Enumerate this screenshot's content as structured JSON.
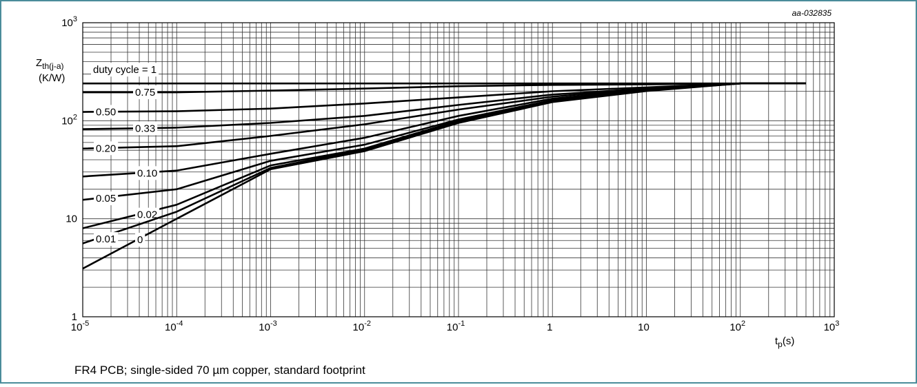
{
  "chart_data": {
    "type": "line",
    "annotation": "aa-032835",
    "caption": "FR4 PCB; single-sided 70 µm copper, standard footprint",
    "y_label": {
      "symbol": "Z",
      "subscript": "th(j-a)",
      "unit": "(K/W)"
    },
    "x_label": {
      "symbol": "t",
      "subscript": "p",
      "unit": "(s)"
    },
    "log_x": true,
    "log_y": true,
    "grid": true,
    "minor_grid": true,
    "xlim": [
      1e-05,
      1000
    ],
    "ylim": [
      1,
      1000
    ],
    "xticks": [
      {
        "value": 1e-05,
        "label": "10",
        "sup": "-5"
      },
      {
        "value": 0.0001,
        "label": "10",
        "sup": "-4"
      },
      {
        "value": 0.001,
        "label": "10",
        "sup": "-3"
      },
      {
        "value": 0.01,
        "label": "10",
        "sup": "-2"
      },
      {
        "value": 0.1,
        "label": "10",
        "sup": "-1"
      },
      1,
      10,
      {
        "value": 100,
        "label": "10",
        "sup": "2"
      },
      {
        "value": 1000,
        "label": "10",
        "sup": "3"
      }
    ],
    "yticks": [
      1,
      10,
      {
        "value": 100,
        "label": "10",
        "sup": "2"
      },
      {
        "value": 1000,
        "label": "10",
        "sup": "3"
      }
    ],
    "x": [
      1e-05,
      0.0001,
      0.001,
      0.01,
      0.1,
      1,
      10,
      100,
      500
    ],
    "series": [
      {
        "name": "duty cycle = 1",
        "color": "#000000",
        "values": [
          240,
          240,
          240,
          240,
          240,
          240,
          240,
          240,
          240
        ]
      },
      {
        "name": "0.75",
        "color": "#000000",
        "values": [
          195,
          195,
          203,
          213,
          225,
          232,
          235,
          240,
          240
        ]
      },
      {
        "name": "0.50",
        "color": "#000000",
        "values": [
          123,
          125,
          133,
          150,
          173,
          200,
          219,
          240,
          240
        ]
      },
      {
        "name": "0.33",
        "color": "#000000",
        "values": [
          82,
          85,
          95,
          112,
          145,
          185,
          213,
          240,
          240
        ]
      },
      {
        "name": "0.20",
        "color": "#000000",
        "values": [
          52,
          55,
          70,
          92,
          130,
          176,
          211,
          240,
          240
        ]
      },
      {
        "name": "0.10",
        "color": "#000000",
        "values": [
          27,
          31,
          46,
          67,
          112,
          168,
          207,
          240,
          240
        ]
      },
      {
        "name": "0.05",
        "color": "#000000",
        "values": [
          15.6,
          20,
          39,
          57,
          103,
          162,
          207,
          240,
          240
        ]
      },
      {
        "name": "0.02",
        "color": "#000000",
        "values": [
          8,
          13.9,
          35,
          52,
          100,
          160,
          204,
          240,
          240
        ]
      },
      {
        "name": "0.01",
        "color": "#000000",
        "values": [
          5.6,
          11.8,
          33,
          51,
          97,
          158,
          204,
          240,
          240
        ]
      },
      {
        "name": "0",
        "color": "#000000",
        "values": [
          3.1,
          10,
          32,
          49,
          95,
          155,
          201,
          240,
          240
        ]
      }
    ]
  }
}
